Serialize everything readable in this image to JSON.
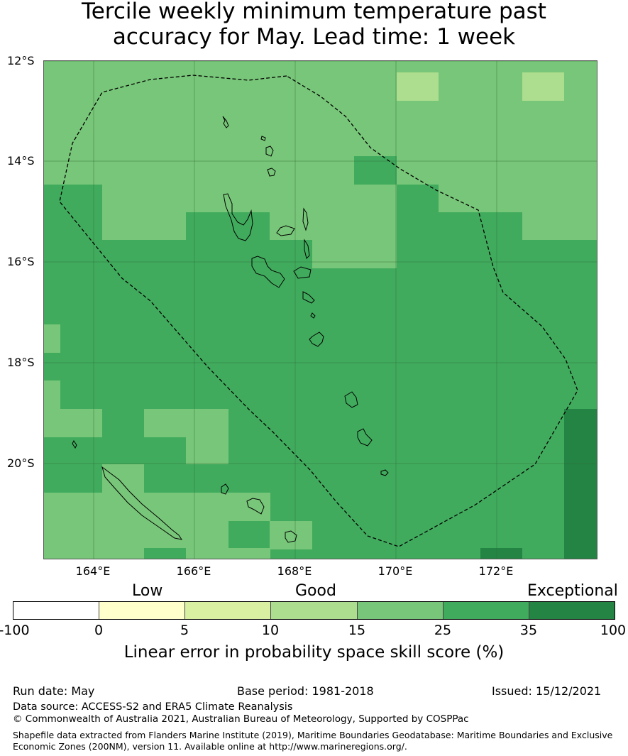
{
  "title_line1": "Tercile weekly minimum temperature past",
  "title_line2": "accuracy for May. Lead time: 1 week",
  "map": {
    "lat_labels": [
      "12°S",
      "14°S",
      "16°S",
      "18°S",
      "20°S"
    ],
    "lon_labels": [
      "164°E",
      "166°E",
      "168°E",
      "170°E",
      "172°E"
    ],
    "lon_range": [
      163.0,
      174.0
    ],
    "lat_range": [
      -21.9,
      -12.0
    ],
    "colors": {
      "15-25": "#78c679",
      "10-15": "#addd8e",
      "25-35": "#41ab5d",
      "35-100": "#238443"
    }
  },
  "legend": {
    "category_labels": [
      "Low",
      "Good",
      "Exceptional"
    ],
    "ticks": [
      "-100",
      "0",
      "5",
      "10",
      "15",
      "25",
      "35",
      "100"
    ],
    "colors": [
      "#ffffff",
      "#ffffcc",
      "#d9f0a3",
      "#addd8e",
      "#78c679",
      "#41ab5d",
      "#238443"
    ],
    "label": "Linear error in probability space skill score (%)"
  },
  "footer": {
    "run_date": "Run date: May",
    "base_period": "Base period: 1981-2018",
    "issued": "Issued: 15/12/2021",
    "data_source": "Data source: ACCESS-S2 and ERA5 Climate Reanalysis",
    "copyright": "© Commonwealth of Australia 2021, Australian Bureau of Meteorology, Supported by COSPPac",
    "shapefile": "Shapefile data extracted from Flanders Marine Institute (2019), Maritime Boundaries Geodatabase: Maritime Boundaries and Exclusive Economic Zones (200NM), version 11. Available online at http://www.marineregions.org/."
  }
}
